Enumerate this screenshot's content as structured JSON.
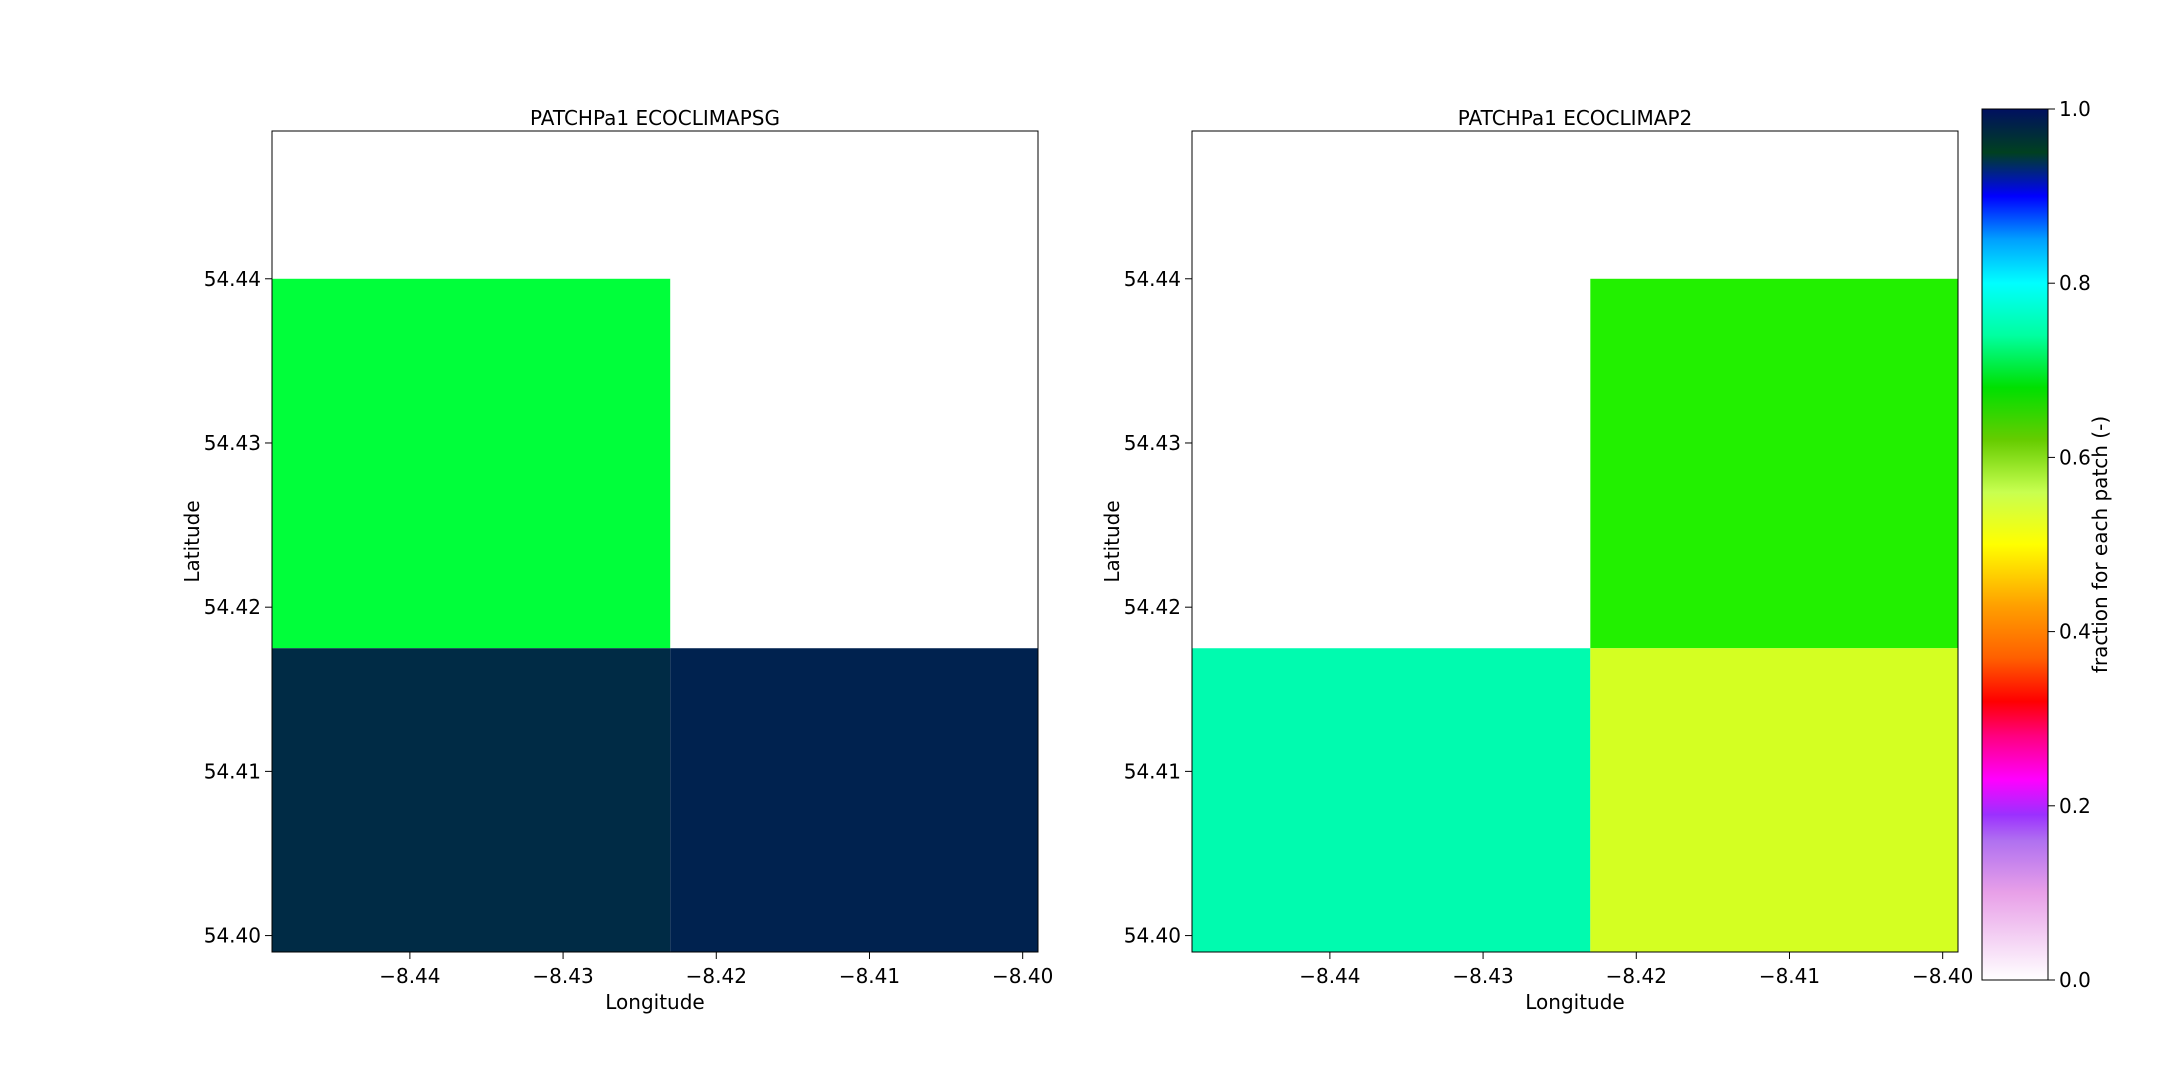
{
  "chart_data": [
    {
      "type": "heatmap",
      "title": "PATCHPa1 ECOCLIMAPSG",
      "xlabel": "Longitude",
      "ylabel": "Latitude",
      "xlim": [
        -8.449,
        -8.399
      ],
      "ylim": [
        54.399,
        54.449
      ],
      "xticks": [
        "−8.44",
        "−8.43",
        "−8.42",
        "−8.41",
        "−8.40"
      ],
      "xtick_values": [
        -8.44,
        -8.43,
        -8.42,
        -8.41,
        -8.4
      ],
      "yticks": [
        "54.40",
        "54.41",
        "54.42",
        "54.43",
        "54.44"
      ],
      "ytick_values": [
        54.4,
        54.41,
        54.42,
        54.43,
        54.44
      ],
      "cells": [
        {
          "x0": -8.449,
          "x1": -8.423,
          "y0": 54.4175,
          "y1": 54.44,
          "color": "#00ff3a",
          "value": 0.66
        },
        {
          "x0": -8.423,
          "x1": -8.399,
          "y0": 54.4175,
          "y1": 54.44,
          "color": "#ffffff",
          "value": null
        },
        {
          "x0": -8.449,
          "x1": -8.423,
          "y0": 54.399,
          "y1": 54.4175,
          "color": "#002b45",
          "value": 0.98
        },
        {
          "x0": -8.423,
          "x1": -8.399,
          "y0": 54.399,
          "y1": 54.4175,
          "color": "#00224f",
          "value": 0.97
        }
      ]
    },
    {
      "type": "heatmap",
      "title": "PATCHPa1 ECOCLIMAP2",
      "xlabel": "Longitude",
      "ylabel": "Latitude",
      "xlim": [
        -8.449,
        -8.399
      ],
      "ylim": [
        54.399,
        54.449
      ],
      "xticks": [
        "−8.44",
        "−8.43",
        "−8.42",
        "−8.41",
        "−8.40"
      ],
      "xtick_values": [
        -8.44,
        -8.43,
        -8.42,
        -8.41,
        -8.4
      ],
      "yticks": [
        "54.40",
        "54.41",
        "54.42",
        "54.43",
        "54.44"
      ],
      "ytick_values": [
        54.4,
        54.41,
        54.42,
        54.43,
        54.44
      ],
      "cells": [
        {
          "x0": -8.449,
          "x1": -8.423,
          "y0": 54.4175,
          "y1": 54.44,
          "color": "#ffffff",
          "value": null
        },
        {
          "x0": -8.423,
          "x1": -8.399,
          "y0": 54.4175,
          "y1": 54.44,
          "color": "#22f000",
          "value": 0.63
        },
        {
          "x0": -8.449,
          "x1": -8.423,
          "y0": 54.399,
          "y1": 54.4175,
          "color": "#00fbaf",
          "value": 0.74
        },
        {
          "x0": -8.423,
          "x1": -8.399,
          "y0": 54.399,
          "y1": 54.4175,
          "color": "#d4ff22",
          "value": 0.55
        }
      ]
    }
  ],
  "colorbar": {
    "label": "fraction for each patch (-)",
    "range": [
      0.0,
      1.0
    ],
    "ticks": [
      "0.0",
      "0.2",
      "0.4",
      "0.6",
      "0.8",
      "1.0"
    ],
    "tick_values": [
      0.0,
      0.2,
      0.4,
      0.6,
      0.8,
      1.0
    ],
    "stops": [
      {
        "v": 0.0,
        "c": "#ffffff"
      },
      {
        "v": 0.1,
        "c": "#e8a0e8"
      },
      {
        "v": 0.16,
        "c": "#b070f0"
      },
      {
        "v": 0.19,
        "c": "#9b30ff"
      },
      {
        "v": 0.23,
        "c": "#ff00ff"
      },
      {
        "v": 0.28,
        "c": "#ff0080"
      },
      {
        "v": 0.32,
        "c": "#ff0000"
      },
      {
        "v": 0.37,
        "c": "#ff6000"
      },
      {
        "v": 0.43,
        "c": "#ffa000"
      },
      {
        "v": 0.5,
        "c": "#ffff00"
      },
      {
        "v": 0.56,
        "c": "#c8ff50"
      },
      {
        "v": 0.62,
        "c": "#66cc00"
      },
      {
        "v": 0.68,
        "c": "#00e000"
      },
      {
        "v": 0.74,
        "c": "#00ffa0"
      },
      {
        "v": 0.8,
        "c": "#00ffff"
      },
      {
        "v": 0.85,
        "c": "#00a0ff"
      },
      {
        "v": 0.9,
        "c": "#0000ff"
      },
      {
        "v": 0.95,
        "c": "#004020"
      },
      {
        "v": 1.0,
        "c": "#001060"
      }
    ]
  }
}
